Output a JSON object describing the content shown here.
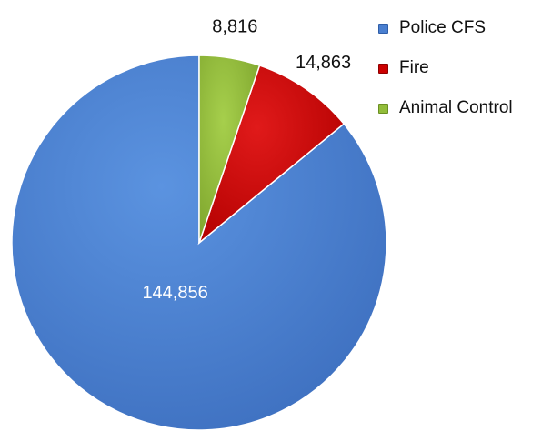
{
  "chart_data": {
    "type": "pie",
    "categories": [
      "Police CFS",
      "Fire",
      "Animal Control"
    ],
    "values": [
      144856,
      14863,
      8816
    ],
    "data_labels": [
      "144,856",
      "14,863",
      "8,816"
    ],
    "colors": [
      "#4a7fd0",
      "#cc0000",
      "#92bd3a"
    ],
    "start_angle_deg": 0,
    "direction": "counterclockwise",
    "legend_position": "top-right",
    "title": ""
  }
}
